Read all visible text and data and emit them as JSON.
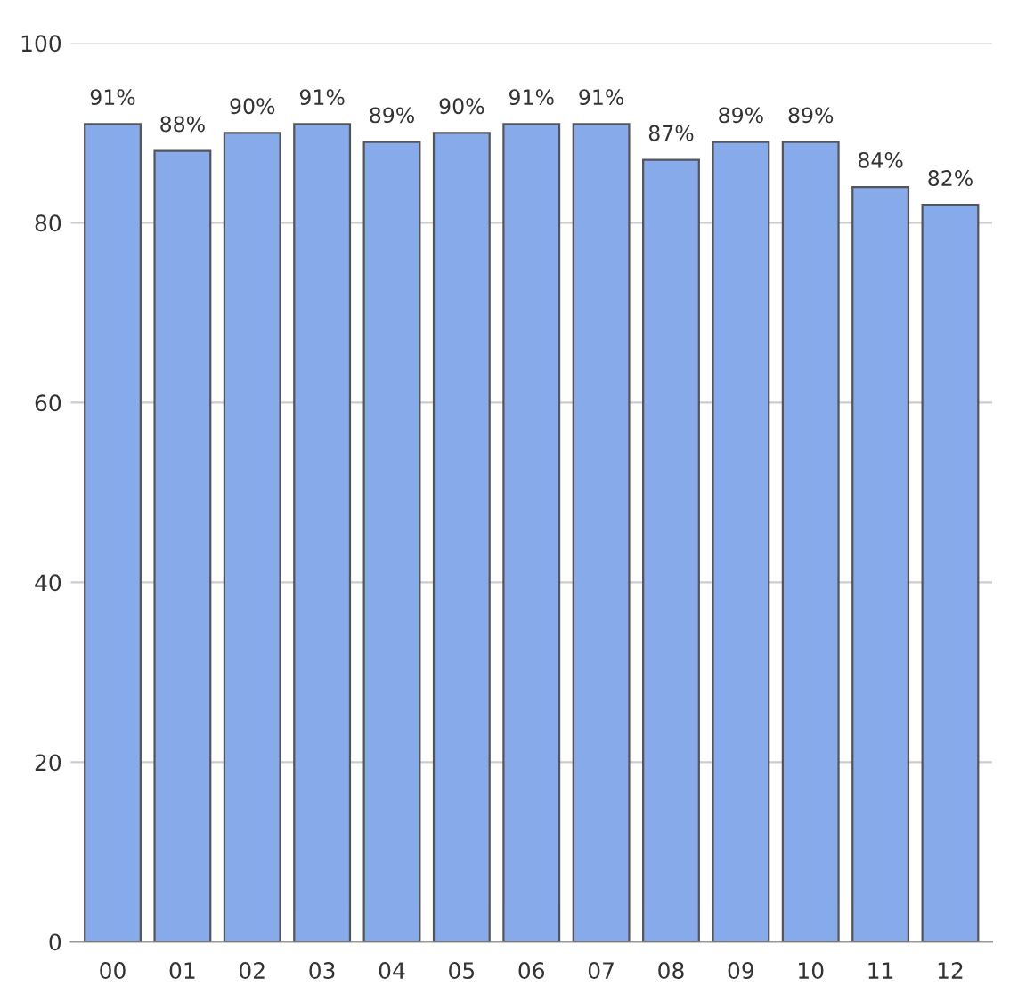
{
  "chart_data": {
    "type": "bar",
    "categories": [
      "00",
      "01",
      "02",
      "03",
      "04",
      "05",
      "06",
      "07",
      "08",
      "09",
      "10",
      "11",
      "12"
    ],
    "values": [
      91,
      88,
      90,
      91,
      89,
      90,
      91,
      91,
      87,
      89,
      89,
      84,
      82
    ],
    "value_labels": [
      "91%",
      "88%",
      "90%",
      "91%",
      "89%",
      "90%",
      "91%",
      "91%",
      "87%",
      "89%",
      "89%",
      "84%",
      "82%"
    ],
    "color": "#86aaea",
    "ylim": [
      0,
      100
    ],
    "yticks": [
      0,
      20,
      40,
      60,
      80,
      100
    ],
    "grid": "y"
  }
}
